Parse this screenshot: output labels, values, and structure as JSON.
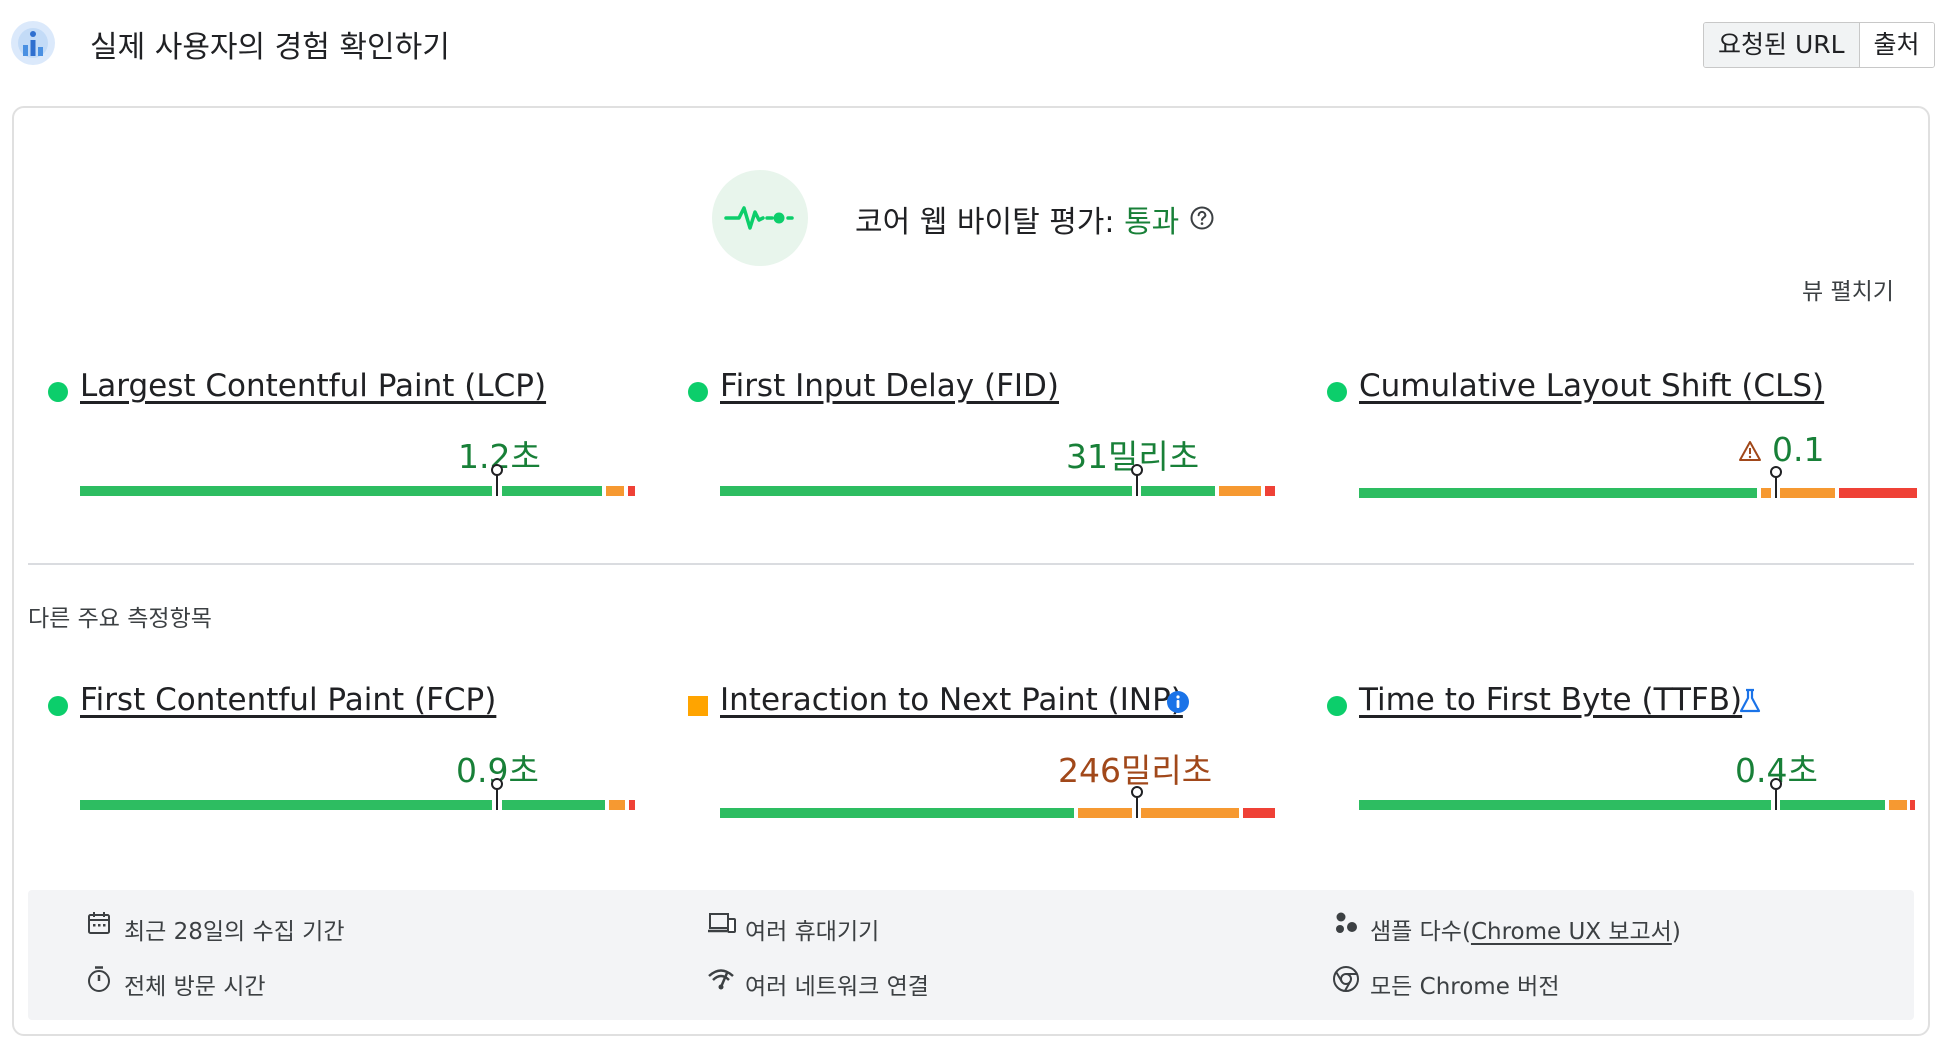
{
  "header": {
    "title": "실제 사용자의 경험 확인하기",
    "toggle": [
      {
        "label": "요청된 URL",
        "active": true
      },
      {
        "label": "출처",
        "active": false
      }
    ]
  },
  "assessment": {
    "label": "코어 웹 바이탈 평가:",
    "status": "통과",
    "expand_label": "뷰 펼치기",
    "status_color": "#188038"
  },
  "core_metrics": [
    {
      "label": "Largest Contentful Paint (LCP)",
      "value": "1.2초",
      "rating": "good"
    },
    {
      "label": "First Input Delay (FID)",
      "value": "31밀리초",
      "rating": "good"
    },
    {
      "label": "Cumulative Layout Shift (CLS)",
      "value": "0.1",
      "rating": "good",
      "note_icon": "warning-icon"
    }
  ],
  "other_section_label": "다른 주요 측정항목",
  "other_metrics": [
    {
      "label": "First Contentful Paint (FCP)",
      "value": "0.9초",
      "rating": "good"
    },
    {
      "label": "Interaction to Next Paint (INP)",
      "value": "246밀리초",
      "rating": "needs-improvement",
      "note_icon": "info-icon"
    },
    {
      "label": "Time to First Byte (TTFB)",
      "value": "0.4초",
      "rating": "good",
      "note_icon": "flask-icon"
    }
  ],
  "info": {
    "collection_period": "최근 28일의 수집 기간",
    "devices": "여러 휴대기기",
    "samples_prefix": "샘플 다수(",
    "samples_link": "Chrome UX 보고서",
    "samples_suffix": ")",
    "visit_duration": "전체 방문 시간",
    "network": "여러 네트워크 연결",
    "chrome_versions": "모든 Chrome 버전"
  },
  "colors": {
    "good": "#0cce6b",
    "needs_improvement": "#ffa400",
    "poor": "#ff4e42"
  }
}
